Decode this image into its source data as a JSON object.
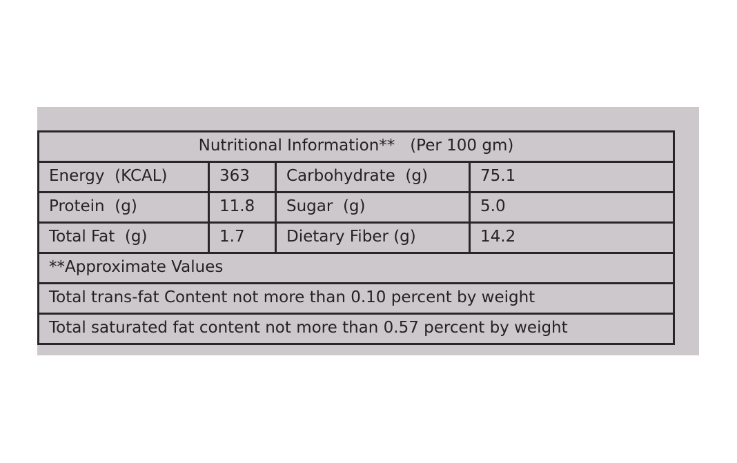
{
  "table": {
    "title": "Nutritional Information**   (Per 100 gm)",
    "rows": [
      [
        "Energy  (KCAL)",
        "363",
        "Carbohydrate  (g)",
        "75.1"
      ],
      [
        "Protein  (g)",
        "11.8",
        "Sugar  (g)",
        "5.0"
      ],
      [
        "Total Fat  (g)",
        "1.7",
        "Dietary Fiber (g)",
        "14.2"
      ]
    ],
    "notes": [
      "**Approximate Values",
      "Total trans-fat Content not more than 0.10 percent by weight",
      "Total saturated fat content not more than 0.57 percent by weight"
    ]
  }
}
